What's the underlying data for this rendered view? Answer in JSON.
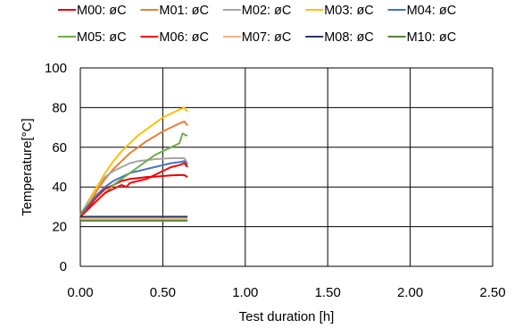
{
  "chart_data": {
    "type": "line",
    "title": "",
    "xlabel": "Test duration [h]",
    "ylabel": "Temperature[°C]",
    "xlim": [
      0,
      2.5
    ],
    "ylim": [
      0,
      100
    ],
    "x_ticks": [
      "0.00",
      "0.50",
      "1.00",
      "1.50",
      "2.00",
      "2.50"
    ],
    "y_ticks": [
      "0",
      "20",
      "40",
      "60",
      "80",
      "100"
    ],
    "grid": true,
    "legend_position": "top",
    "series": [
      {
        "name": "M00: øC",
        "color": "#e8000b",
        "x": [
          0,
          0.05,
          0.1,
          0.15,
          0.2,
          0.25,
          0.3,
          0.35,
          0.4,
          0.45,
          0.5,
          0.55,
          0.6,
          0.63,
          0.65
        ],
        "y": [
          26,
          30,
          35,
          39,
          41,
          43,
          44,
          44.5,
          45,
          45.2,
          45.5,
          45.8,
          46,
          46,
          45
        ]
      },
      {
        "name": "M01: øC",
        "color": "#ed7d31",
        "x": [
          0,
          0.05,
          0.1,
          0.15,
          0.2,
          0.25,
          0.3,
          0.35,
          0.4,
          0.45,
          0.5,
          0.55,
          0.6,
          0.63,
          0.65
        ],
        "y": [
          26,
          31,
          38,
          44,
          49,
          53,
          57,
          60,
          63,
          65.5,
          68,
          70,
          72,
          73,
          71
        ]
      },
      {
        "name": "M02: øC",
        "color": "#a5a5a5",
        "x": [
          0,
          0.05,
          0.1,
          0.15,
          0.2,
          0.25,
          0.3,
          0.35,
          0.4,
          0.45,
          0.5,
          0.55,
          0.6,
          0.63,
          0.65
        ],
        "y": [
          26,
          33,
          40,
          45,
          48,
          50,
          52,
          53,
          53.5,
          54,
          54.3,
          54.5,
          54.5,
          54.5,
          52
        ]
      },
      {
        "name": "M03: øC",
        "color": "#ffc000",
        "x": [
          0,
          0.05,
          0.1,
          0.15,
          0.2,
          0.25,
          0.3,
          0.35,
          0.4,
          0.45,
          0.5,
          0.55,
          0.6,
          0.63,
          0.65
        ],
        "y": [
          26,
          32,
          40,
          47,
          53,
          58,
          62,
          66,
          69,
          72,
          75,
          77,
          79,
          80,
          78
        ]
      },
      {
        "name": "M04: øC",
        "color": "#4472c4",
        "x": [
          0,
          0.05,
          0.1,
          0.15,
          0.2,
          0.25,
          0.3,
          0.35,
          0.4,
          0.45,
          0.5,
          0.55,
          0.6,
          0.63,
          0.65
        ],
        "y": [
          26,
          31,
          36,
          40,
          43,
          45,
          47,
          48,
          49,
          50,
          51,
          52,
          52.5,
          53,
          51
        ]
      },
      {
        "name": "M05: øC",
        "color": "#70ad47",
        "x": [
          0,
          0.05,
          0.1,
          0.15,
          0.2,
          0.25,
          0.3,
          0.35,
          0.4,
          0.45,
          0.5,
          0.55,
          0.6,
          0.62,
          0.64,
          0.65
        ],
        "y": [
          26,
          29,
          33,
          37,
          41,
          44,
          47,
          50,
          53,
          56,
          58,
          60,
          62,
          67,
          66,
          66
        ]
      },
      {
        "name": "M06: øC",
        "color": "#ff0000",
        "x": [
          0,
          0.05,
          0.1,
          0.15,
          0.2,
          0.25,
          0.28,
          0.3,
          0.35,
          0.4,
          0.45,
          0.5,
          0.55,
          0.6,
          0.63,
          0.65
        ],
        "y": [
          25,
          29,
          33,
          37,
          39,
          41,
          40,
          42,
          43,
          44,
          46,
          48,
          50,
          51,
          52,
          50
        ]
      },
      {
        "name": "M07: øC",
        "color": "#f4b183",
        "x": [
          0,
          0.65
        ],
        "y": [
          24,
          24
        ]
      },
      {
        "name": "M08: øC",
        "color": "#203864",
        "x": [
          0,
          0.65
        ],
        "y": [
          25,
          25
        ]
      },
      {
        "name": "M10: øC",
        "color": "#548235",
        "x": [
          0,
          0.65
        ],
        "y": [
          23,
          23
        ]
      }
    ]
  }
}
